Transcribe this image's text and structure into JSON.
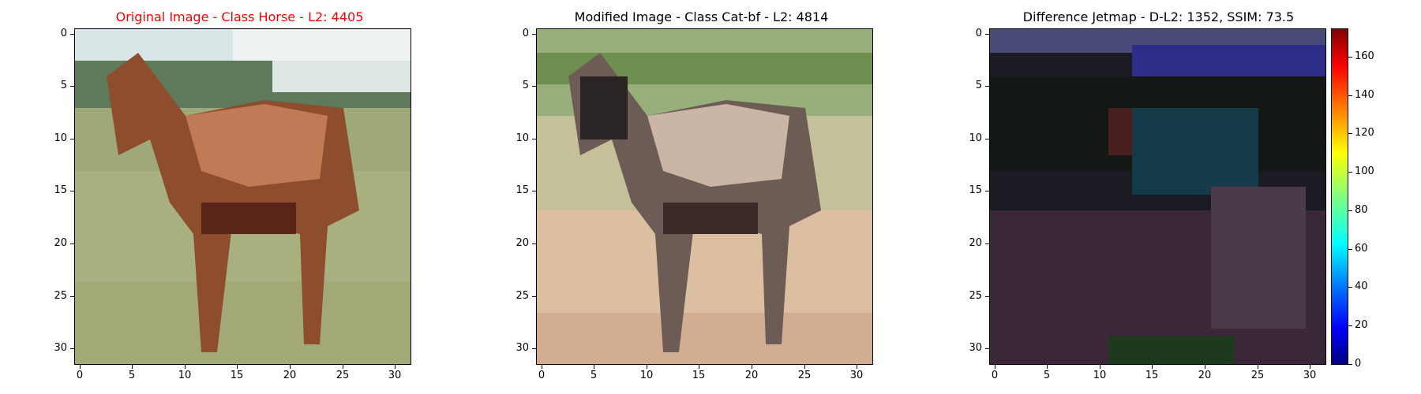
{
  "panels": [
    {
      "title": "Original Image - Class Horse - L2: 4405",
      "title_color": "#ff0000"
    },
    {
      "title": "Modified Image - Class Cat-bf - L2: 4814",
      "title_color": "#000000"
    },
    {
      "title": "Difference Jetmap - D-L2: 1352, SSIM: 73.5",
      "title_color": "#000000"
    }
  ],
  "axis": {
    "x_ticks": [
      "0",
      "5",
      "10",
      "15",
      "20",
      "25",
      "30"
    ],
    "y_ticks": [
      "0",
      "5",
      "10",
      "15",
      "20",
      "25",
      "30"
    ]
  },
  "colorbar": {
    "ticks": [
      "0",
      "20",
      "40",
      "60",
      "80",
      "100",
      "120",
      "140",
      "160"
    ],
    "colormap": "jet"
  }
}
